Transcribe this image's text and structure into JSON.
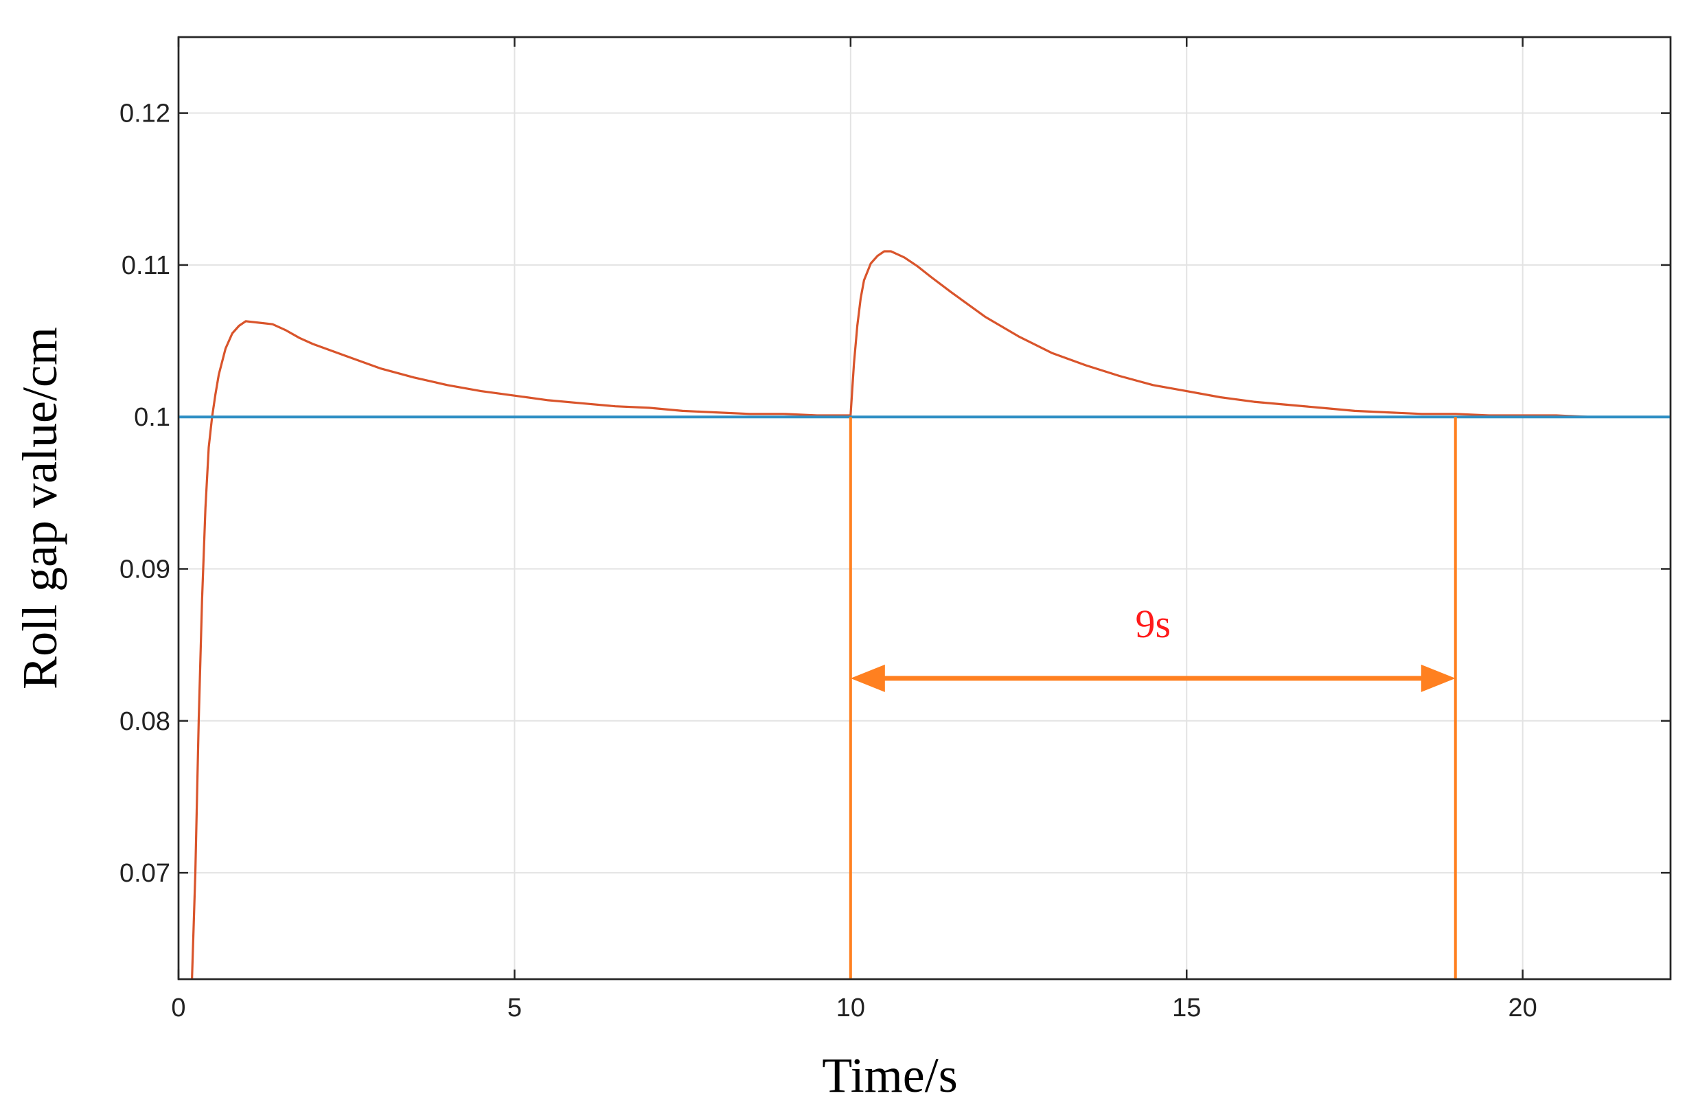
{
  "chart_data": {
    "type": "line",
    "xlabel": "Time/s",
    "ylabel": "Roll gap value/cm",
    "xlim": [
      0,
      22.2
    ],
    "ylim": [
      0.063,
      0.125
    ],
    "x_ticks": [
      0,
      5,
      10,
      15,
      20
    ],
    "x_tick_labels": [
      "0",
      "5",
      "10",
      "15",
      "20"
    ],
    "y_ticks": [
      0.07,
      0.08,
      0.09,
      0.1,
      0.11,
      0.12
    ],
    "y_tick_labels": [
      "0.07",
      "0.08",
      "0.09",
      "0.1",
      "0.11",
      "0.12"
    ],
    "grid": true,
    "series": [
      {
        "color": "#d9542b",
        "x": [
          0.2,
          0.25,
          0.3,
          0.35,
          0.4,
          0.45,
          0.5,
          0.55,
          0.6,
          0.7,
          0.8,
          0.9,
          1.0,
          1.2,
          1.4,
          1.6,
          1.8,
          2.0,
          2.5,
          3.0,
          3.5,
          4.0,
          4.5,
          5.0,
          5.5,
          6.0,
          6.5,
          7.0,
          7.5,
          8.0,
          8.5,
          9.0,
          9.5,
          10.0,
          10.05,
          10.1,
          10.15,
          10.2,
          10.3,
          10.4,
          10.5,
          10.6,
          10.7,
          10.8,
          11.0,
          11.2,
          11.5,
          12.0,
          12.5,
          13.0,
          13.5,
          14.0,
          14.5,
          15.0,
          15.5,
          16.0,
          16.5,
          17.0,
          17.5,
          18.0,
          18.5,
          19.0,
          19.5,
          20.0,
          20.5,
          21.0,
          21.5,
          22.2
        ],
        "y": [
          0.063,
          0.07,
          0.08,
          0.088,
          0.094,
          0.098,
          0.1,
          0.1015,
          0.1028,
          0.1045,
          0.1055,
          0.106,
          0.1063,
          0.1062,
          0.1061,
          0.1057,
          0.1052,
          0.1048,
          0.104,
          0.1032,
          0.1026,
          0.1021,
          0.1017,
          0.1014,
          0.1011,
          0.1009,
          0.1007,
          0.1006,
          0.1004,
          0.1003,
          0.1002,
          0.1002,
          0.1001,
          0.1001,
          0.1035,
          0.106,
          0.1078,
          0.109,
          0.1101,
          0.1106,
          0.1109,
          0.1109,
          0.1107,
          0.1105,
          0.1099,
          0.1092,
          0.1082,
          0.1066,
          0.1053,
          0.1042,
          0.1034,
          0.1027,
          0.1021,
          0.1017,
          0.1013,
          0.101,
          0.1008,
          0.1006,
          0.1004,
          0.1003,
          0.1002,
          0.1002,
          0.1001,
          0.1001,
          0.1001,
          0.1,
          0.1,
          0.1
        ]
      },
      {
        "color": "#2f8fc4",
        "x": [
          0,
          22.2
        ],
        "y": [
          0.1,
          0.1
        ]
      }
    ],
    "annotations": [
      {
        "kind": "vline",
        "x": 10,
        "y_from": 0.063,
        "y_to": 0.1,
        "color": "#ff8020"
      },
      {
        "kind": "vline",
        "x": 19,
        "y_from": 0.063,
        "y_to": 0.1,
        "color": "#ff8020"
      },
      {
        "kind": "double-arrow",
        "x_from": 10,
        "x_to": 19,
        "y": 0.0828,
        "color": "#ff8020"
      },
      {
        "kind": "text",
        "text": "9s",
        "x": 14.5,
        "y": 0.0855,
        "color": "#ff1a1a"
      }
    ]
  }
}
